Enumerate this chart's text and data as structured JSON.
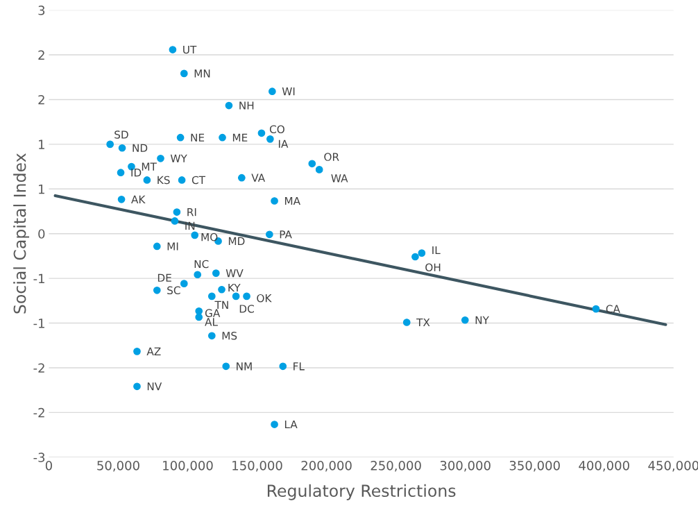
{
  "chart_data": {
    "type": "scatter",
    "xlabel": "Regulatory Restrictions",
    "ylabel": "Social Capital Index",
    "xlim": [
      0,
      450000
    ],
    "xticks": [
      {
        "value": 0,
        "label": "0"
      },
      {
        "value": 50000,
        "label": "50,000"
      },
      {
        "value": 100000,
        "label": "100,000"
      },
      {
        "value": 150000,
        "label": "150,000"
      },
      {
        "value": 200000,
        "label": "200,000"
      },
      {
        "value": 250000,
        "label": "250,000"
      },
      {
        "value": 300000,
        "label": "300,000"
      },
      {
        "value": 350000,
        "label": "350,000"
      },
      {
        "value": 400000,
        "label": "400,000"
      },
      {
        "value": 450000,
        "label": "450,000"
      }
    ],
    "ylim": [
      -3,
      3
    ],
    "yticks": [
      {
        "value": 3,
        "label": "3"
      },
      {
        "value": 2.4,
        "label": "2"
      },
      {
        "value": 1.8,
        "label": "2"
      },
      {
        "value": 1.2,
        "label": "1"
      },
      {
        "value": 0.6,
        "label": "1"
      },
      {
        "value": 0,
        "label": "0"
      },
      {
        "value": -0.6,
        "label": "-1"
      },
      {
        "value": -1.2,
        "label": "-1"
      },
      {
        "value": -1.8,
        "label": "-2"
      },
      {
        "value": -2.4,
        "label": "-2"
      },
      {
        "value": -3,
        "label": "-3"
      }
    ],
    "grid": "y",
    "marker": "circle",
    "legend": false,
    "series": [
      {
        "color": "#00a0e3",
        "x": [
          89200,
          97400,
          160900,
          129700,
          44100,
          52800,
          94800,
          125000,
          153200,
          159400,
          80500,
          59500,
          51800,
          70700,
          95800,
          138900,
          189600,
          194800,
          52300,
          162500,
          92200,
          90700,
          105100,
          122000,
          158900,
          77900,
          268600,
          263900,
          107100,
          120400,
          97400,
          124500,
          77900,
          117400,
          134800,
          142500,
          108100,
          108100,
          394100,
          257800,
          299800,
          117400,
          63500,
          127600,
          168600,
          63500,
          162500
        ],
        "values": [
          2.47,
          2.15,
          1.91,
          1.72,
          1.2,
          1.15,
          1.29,
          1.29,
          1.35,
          1.27,
          1.01,
          0.9,
          0.82,
          0.72,
          0.72,
          0.75,
          0.94,
          0.86,
          0.46,
          0.44,
          0.29,
          0.17,
          -0.02,
          -0.1,
          -0.01,
          -0.17,
          -0.26,
          -0.31,
          -0.55,
          -0.53,
          -0.67,
          -0.75,
          -0.76,
          -0.84,
          -0.84,
          -0.84,
          -1.04,
          -1.12,
          -1.01,
          -1.19,
          -1.16,
          -1.37,
          -1.58,
          -1.78,
          -1.78,
          -2.05,
          -2.56
        ]
      },
      {
        "type": "line",
        "marker": "none",
        "color": "#3d5661",
        "x": [
          4600,
          444300
        ],
        "values": [
          0.51,
          -1.22
        ]
      }
    ],
    "annotations": [
      {
        "text": "UT",
        "x": 89200,
        "y": 2.47
      },
      {
        "text": "MN",
        "x": 97400,
        "y": 2.15
      },
      {
        "text": "WI",
        "x": 160900,
        "y": 1.91
      },
      {
        "text": "NH",
        "x": 129700,
        "y": 1.72
      },
      {
        "text": "SD",
        "x": 44100,
        "y": 1.2
      },
      {
        "text": "ND",
        "x": 52800,
        "y": 1.15
      },
      {
        "text": "NE",
        "x": 94800,
        "y": 1.29
      },
      {
        "text": "ME",
        "x": 125000,
        "y": 1.29
      },
      {
        "text": "CO",
        "x": 153200,
        "y": 1.35
      },
      {
        "text": "IA",
        "x": 159400,
        "y": 1.27
      },
      {
        "text": "WY",
        "x": 80500,
        "y": 1.01
      },
      {
        "text": "MT",
        "x": 59500,
        "y": 0.9
      },
      {
        "text": "ID",
        "x": 51800,
        "y": 0.82
      },
      {
        "text": "KS",
        "x": 70700,
        "y": 0.72
      },
      {
        "text": "CT",
        "x": 95800,
        "y": 0.72
      },
      {
        "text": "VA",
        "x": 138900,
        "y": 0.75
      },
      {
        "text": "OR",
        "x": 189600,
        "y": 0.94
      },
      {
        "text": "WA",
        "x": 194800,
        "y": 0.86
      },
      {
        "text": "AK",
        "x": 52300,
        "y": 0.46
      },
      {
        "text": "MA",
        "x": 162500,
        "y": 0.44
      },
      {
        "text": "RI",
        "x": 92200,
        "y": 0.29
      },
      {
        "text": "IN",
        "x": 90700,
        "y": 0.17
      },
      {
        "text": "MO",
        "x": 105100,
        "y": -0.02
      },
      {
        "text": "MD",
        "x": 122000,
        "y": -0.1
      },
      {
        "text": "PA",
        "x": 158900,
        "y": -0.01
      },
      {
        "text": "MI",
        "x": 77900,
        "y": -0.17
      },
      {
        "text": "IL",
        "x": 268600,
        "y": -0.26
      },
      {
        "text": "OH",
        "x": 263900,
        "y": -0.31
      },
      {
        "text": "NC",
        "x": 107100,
        "y": -0.55
      },
      {
        "text": "WV",
        "x": 120400,
        "y": -0.53
      },
      {
        "text": "DE",
        "x": 97400,
        "y": -0.67
      },
      {
        "text": "KY",
        "x": 124500,
        "y": -0.75
      },
      {
        "text": "SC",
        "x": 77900,
        "y": -0.76
      },
      {
        "text": "TN",
        "x": 117400,
        "y": -0.84
      },
      {
        "text": "DC",
        "x": 134800,
        "y": -0.84
      },
      {
        "text": "OK",
        "x": 142500,
        "y": -0.84
      },
      {
        "text": "GA",
        "x": 108100,
        "y": -1.04
      },
      {
        "text": "AL",
        "x": 108100,
        "y": -1.12
      },
      {
        "text": "CA",
        "x": 394100,
        "y": -1.01
      },
      {
        "text": "TX",
        "x": 257800,
        "y": -1.19
      },
      {
        "text": "NY",
        "x": 299800,
        "y": -1.16
      },
      {
        "text": "MS",
        "x": 117400,
        "y": -1.37
      },
      {
        "text": "AZ",
        "x": 63500,
        "y": -1.58
      },
      {
        "text": "NM",
        "x": 127600,
        "y": -1.78
      },
      {
        "text": "FL",
        "x": 168600,
        "y": -1.78
      },
      {
        "text": "NV",
        "x": 63500,
        "y": -2.05
      },
      {
        "text": "LA",
        "x": 162500,
        "y": -2.56
      }
    ]
  }
}
